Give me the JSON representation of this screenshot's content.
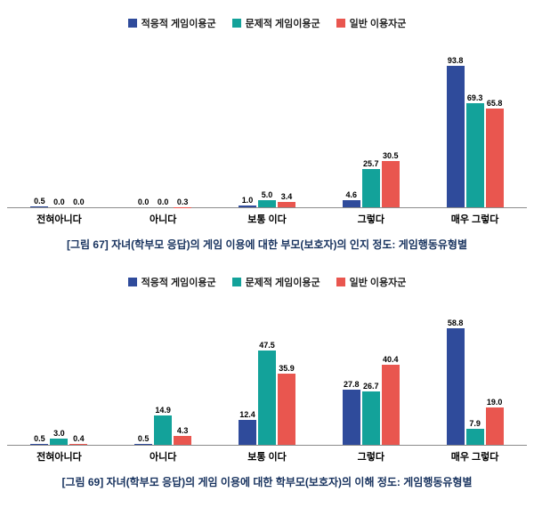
{
  "page": {
    "background": "#ffffff"
  },
  "chart_data": [
    {
      "type": "bar",
      "categories": [
        "전혀아니다",
        "아니다",
        "보통 이다",
        "그렇다",
        "매우 그렇다"
      ],
      "series": [
        {
          "name": "적응적 게임이용군",
          "color": "#2f4b9b",
          "values": [
            0.5,
            0.0,
            1.0,
            4.6,
            93.8
          ]
        },
        {
          "name": "문제적 게임이용군",
          "color": "#13a29a",
          "values": [
            0.0,
            0.0,
            5.0,
            25.7,
            69.3
          ]
        },
        {
          "name": "일반 이용자군",
          "color": "#e9564f",
          "values": [
            0.0,
            0.3,
            3.4,
            30.5,
            65.8
          ]
        }
      ],
      "ylim": [
        0,
        100
      ],
      "grid": false,
      "legend_position": "top",
      "value_labels": true,
      "caption": "[그림 67] 자녀(학부모 응답)의 게임 이용에 대한 부모(보호자)의 인지 정도: 게임행동유형별"
    },
    {
      "type": "bar",
      "categories": [
        "전혀아니다",
        "아니다",
        "보통 이다",
        "그렇다",
        "매우 그렇다"
      ],
      "series": [
        {
          "name": "적응적 게임이용군",
          "color": "#2f4b9b",
          "values": [
            0.5,
            0.5,
            12.4,
            27.8,
            58.8
          ]
        },
        {
          "name": "문제적 게임이용군",
          "color": "#13a29a",
          "values": [
            3.0,
            14.9,
            47.5,
            26.7,
            7.9
          ]
        },
        {
          "name": "일반 이용자군",
          "color": "#e9564f",
          "values": [
            0.4,
            4.3,
            35.9,
            40.4,
            19.0
          ]
        }
      ],
      "ylim": [
        0,
        65
      ],
      "grid": false,
      "legend_position": "top",
      "value_labels": true,
      "caption": "[그림 69] 자녀(학부모 응답)의 게임 이용에 대한 학부모(보호자)의 이해 정도: 게임행동유형별"
    }
  ]
}
